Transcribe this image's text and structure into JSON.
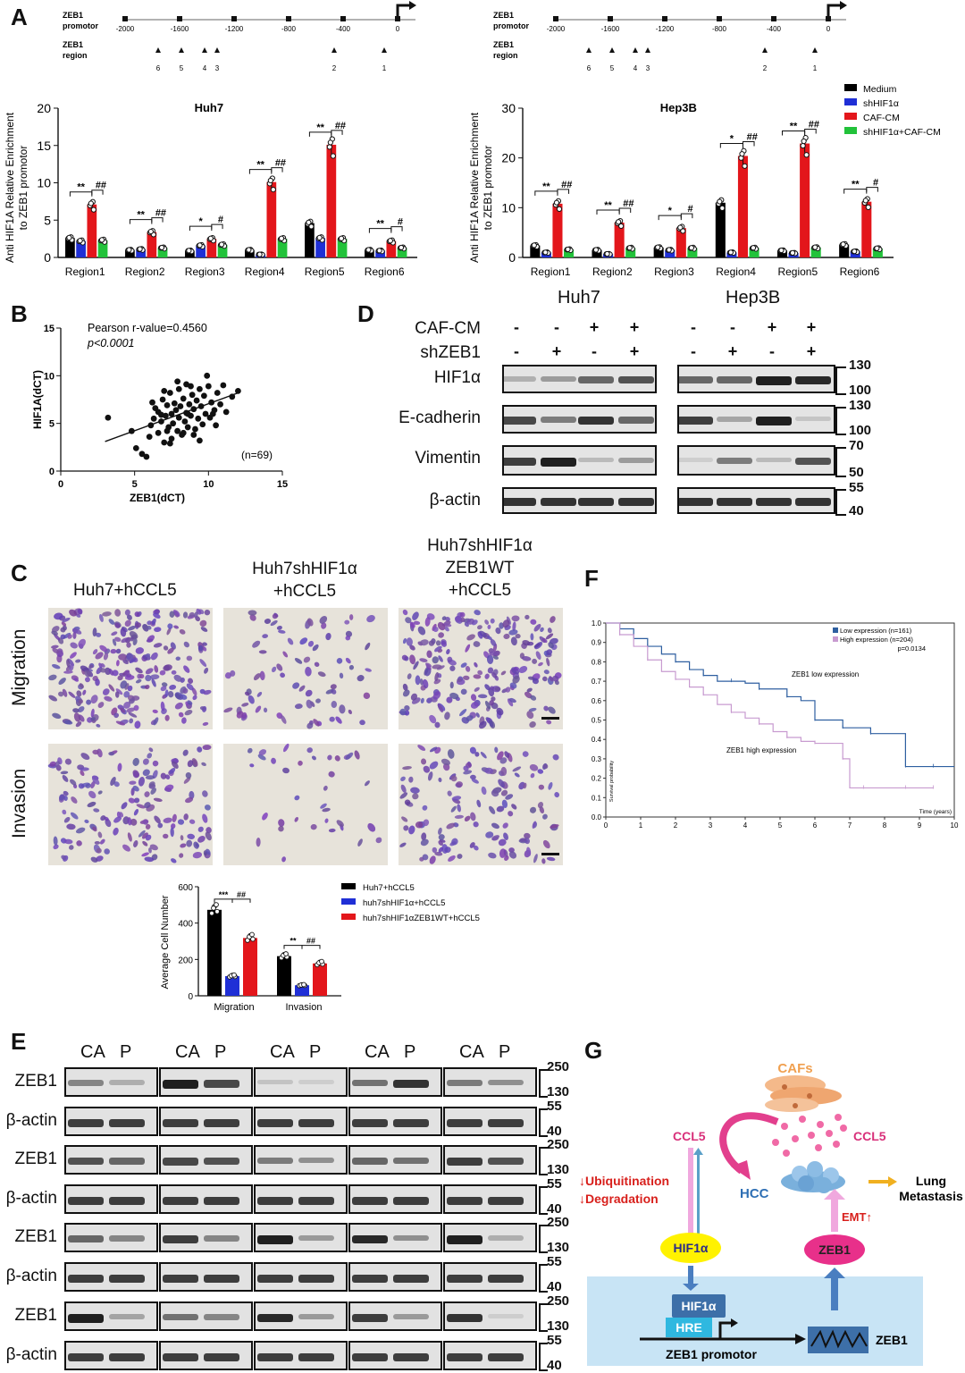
{
  "panels": {
    "A": "A",
    "B": "B",
    "C": "C",
    "D": "D",
    "E": "E",
    "F": "F",
    "G": "G"
  },
  "promoter": {
    "row_label_1a": "ZEB1",
    "row_label_1b": "promotor",
    "row_label_2a": "ZEB1",
    "row_label_2b": "region",
    "ticks": [
      "-2000",
      "-1600",
      "-1200",
      "-800",
      "-400",
      "0"
    ],
    "regions": [
      "6",
      "5",
      "4",
      "3",
      "2",
      "1"
    ]
  },
  "chipA": [
    {
      "title": "Huh7",
      "ylabel_1": "Anti HIF1A Relative Enrichment",
      "ylabel_2": "to ZEB1 promotor",
      "ymax": 20,
      "yticks": [
        "0",
        "5",
        "10",
        "15",
        "20"
      ],
      "categories": [
        "Region1",
        "Region2",
        "Region3",
        "Region4",
        "Region5",
        "Region6"
      ],
      "series": [
        {
          "name": "Medium",
          "color": "#000000",
          "values": [
            2.6,
            1.0,
            0.9,
            1.0,
            4.6,
            1.0
          ]
        },
        {
          "name": "shHIF1α",
          "color": "#1f2fd6",
          "values": [
            2.2,
            1.1,
            1.6,
            0.4,
            2.6,
            0.9
          ]
        },
        {
          "name": "CAF-CM",
          "color": "#e3161b",
          "values": [
            7.1,
            3.4,
            2.5,
            10.1,
            15.1,
            2.2
          ]
        },
        {
          "name": "shHIF1α+CAF-CM",
          "color": "#22c23a",
          "values": [
            2.3,
            1.3,
            1.7,
            2.5,
            2.5,
            1.3
          ]
        }
      ],
      "sig": [
        [
          "**",
          "##"
        ],
        [
          "**",
          "##"
        ],
        [
          "*",
          "#"
        ],
        [
          "**",
          "##"
        ],
        [
          "**",
          "##"
        ],
        [
          "**",
          "#"
        ]
      ]
    },
    {
      "title": "Hep3B",
      "ylabel_1": "Anti HIF1A Relative Enrichment",
      "ylabel_2": "to ZEB1 promotor",
      "ymax": 30,
      "yticks": [
        "0",
        "10",
        "20",
        "30"
      ],
      "categories": [
        "Region1",
        "Region2",
        "Region3",
        "Region4",
        "Region5",
        "Region6"
      ],
      "series": [
        {
          "name": "Medium",
          "color": "#000000",
          "values": [
            2.4,
            1.5,
            2.0,
            11.0,
            1.4,
            2.6
          ]
        },
        {
          "name": "shHIF1α",
          "color": "#1f2fd6",
          "values": [
            1.0,
            0.7,
            1.5,
            1.0,
            0.9,
            1.2
          ]
        },
        {
          "name": "CAF-CM",
          "color": "#e3161b",
          "values": [
            10.8,
            7.0,
            5.9,
            20.4,
            22.9,
            11.2
          ]
        },
        {
          "name": "shHIF1α+CAF-CM",
          "color": "#22c23a",
          "values": [
            1.6,
            1.9,
            1.9,
            1.9,
            2.0,
            1.8
          ]
        }
      ],
      "sig": [
        [
          "**",
          "##"
        ],
        [
          "**",
          "##"
        ],
        [
          "*",
          "#"
        ],
        [
          "*",
          "##"
        ],
        [
          "**",
          "##"
        ],
        [
          "**",
          "#"
        ]
      ]
    }
  ],
  "legendA": [
    "Medium",
    "shHIF1α",
    "CAF-CM",
    "shHIF1α+CAF-CM"
  ],
  "chart_data": [
    {
      "type": "bar",
      "title": "Huh7",
      "ylabel": "Anti HIF1A Relative Enrichment to ZEB1 promotor",
      "ylim": [
        0,
        20
      ],
      "categories": [
        "Region1",
        "Region2",
        "Region3",
        "Region4",
        "Region5",
        "Region6"
      ],
      "series": [
        {
          "name": "Medium",
          "values": [
            2.6,
            1.0,
            0.9,
            1.0,
            4.6,
            1.0
          ]
        },
        {
          "name": "shHIF1α",
          "values": [
            2.2,
            1.1,
            1.6,
            0.4,
            2.6,
            0.9
          ]
        },
        {
          "name": "CAF-CM",
          "values": [
            7.1,
            3.4,
            2.5,
            10.1,
            15.1,
            2.2
          ]
        },
        {
          "name": "shHIF1α+CAF-CM",
          "values": [
            2.3,
            1.3,
            1.7,
            2.5,
            2.5,
            1.3
          ]
        }
      ]
    },
    {
      "type": "bar",
      "title": "Hep3B",
      "ylabel": "Anti HIF1A Relative Enrichment to ZEB1 promotor",
      "ylim": [
        0,
        30
      ],
      "categories": [
        "Region1",
        "Region2",
        "Region3",
        "Region4",
        "Region5",
        "Region6"
      ],
      "series": [
        {
          "name": "Medium",
          "values": [
            2.4,
            1.5,
            2.0,
            11.0,
            1.4,
            2.6
          ]
        },
        {
          "name": "shHIF1α",
          "values": [
            1.0,
            0.7,
            1.5,
            1.0,
            0.9,
            1.2
          ]
        },
        {
          "name": "CAF-CM",
          "values": [
            10.8,
            7.0,
            5.9,
            20.4,
            22.9,
            11.2
          ]
        },
        {
          "name": "shHIF1α+CAF-CM",
          "values": [
            1.6,
            1.9,
            1.9,
            1.9,
            2.0,
            1.8
          ]
        }
      ]
    },
    {
      "type": "scatter",
      "xlabel": "ZEB1(dCT)",
      "ylabel": "HIF1A(dCT)",
      "xlim": [
        0,
        15
      ],
      "ylim": [
        0,
        15
      ],
      "annotation_1": "Pearson r-value=0.4560",
      "annotation_2": "p<0.0001",
      "n": "(n=69)",
      "points": [
        [
          3.2,
          5.6
        ],
        [
          4.8,
          4.2
        ],
        [
          5.1,
          2.4
        ],
        [
          5.5,
          1.8
        ],
        [
          5.8,
          1.5
        ],
        [
          6.0,
          3.6
        ],
        [
          6.1,
          4.8
        ],
        [
          6.3,
          5.5
        ],
        [
          6.4,
          6.6
        ],
        [
          6.6,
          4.0
        ],
        [
          6.6,
          6.2
        ],
        [
          6.8,
          5.2
        ],
        [
          6.9,
          7.5
        ],
        [
          7.0,
          3.0
        ],
        [
          7.1,
          5.8
        ],
        [
          7.2,
          6.9
        ],
        [
          7.3,
          4.6
        ],
        [
          7.4,
          8.2
        ],
        [
          7.5,
          6.0
        ],
        [
          7.5,
          3.4
        ],
        [
          7.6,
          5.0
        ],
        [
          7.7,
          7.1
        ],
        [
          7.8,
          6.4
        ],
        [
          7.9,
          4.2
        ],
        [
          8.0,
          8.6
        ],
        [
          8.0,
          5.6
        ],
        [
          8.1,
          6.8
        ],
        [
          8.2,
          3.8
        ],
        [
          8.3,
          7.6
        ],
        [
          8.4,
          5.2
        ],
        [
          8.5,
          6.1
        ],
        [
          8.5,
          9.1
        ],
        [
          8.6,
          4.6
        ],
        [
          8.7,
          7.0
        ],
        [
          8.8,
          5.8
        ],
        [
          8.9,
          8.0
        ],
        [
          9.0,
          6.5
        ],
        [
          9.1,
          4.4
        ],
        [
          9.2,
          7.4
        ],
        [
          9.3,
          5.5
        ],
        [
          9.4,
          8.6
        ],
        [
          9.5,
          6.8
        ],
        [
          9.6,
          4.9
        ],
        [
          9.7,
          7.9
        ],
        [
          9.8,
          6.0
        ],
        [
          10.0,
          8.9
        ],
        [
          10.1,
          5.6
        ],
        [
          10.2,
          7.2
        ],
        [
          10.4,
          6.4
        ],
        [
          10.6,
          8.2
        ],
        [
          10.8,
          7.0
        ],
        [
          11.0,
          9.0
        ],
        [
          11.2,
          6.2
        ],
        [
          11.6,
          7.8
        ],
        [
          12.0,
          8.4
        ],
        [
          9.9,
          10.0
        ],
        [
          7.0,
          8.4
        ],
        [
          8.3,
          4.0
        ],
        [
          6.8,
          5.9
        ],
        [
          9.4,
          3.2
        ],
        [
          10.5,
          4.8
        ],
        [
          7.9,
          9.4
        ],
        [
          6.2,
          7.2
        ],
        [
          8.8,
          8.9
        ],
        [
          9.0,
          3.8
        ],
        [
          7.4,
          2.9
        ],
        [
          10.3,
          6.0
        ],
        [
          8.6,
          6.0
        ],
        [
          7.2,
          4.2
        ]
      ],
      "fit": [
        [
          3,
          3.1
        ],
        [
          12,
          8.2
        ]
      ]
    },
    {
      "type": "bar",
      "ylabel": "Average Cell Number",
      "ylim": [
        0,
        600
      ],
      "categories": [
        "Migration",
        "Invasion"
      ],
      "series": [
        {
          "name": "Huh7+hCCL5",
          "values": [
            473,
            218
          ]
        },
        {
          "name": "huh7shHIF1α+hCCL5",
          "values": [
            108,
            58
          ]
        },
        {
          "name": "huh7shHIF1αZEB1WT+hCCL5",
          "values": [
            318,
            178
          ]
        }
      ],
      "sig": [
        [
          "***",
          "##"
        ],
        [
          "**",
          "##"
        ]
      ]
    },
    {
      "type": "line",
      "title": "",
      "xlabel": "Time (years)",
      "ylabel": "Survival probability",
      "xlim": [
        0,
        10
      ],
      "ylim": [
        0,
        1.0
      ],
      "legend": [
        "Low expression (n=161)",
        "High expression (n=204)",
        "p=0.0134"
      ],
      "annotation_low": "ZEB1 low expression",
      "annotation_high": "ZEB1 high expression",
      "series": [
        {
          "name": "Low expression (n=161)",
          "color": "#2e5fa0",
          "x": [
            0,
            0.4,
            0.8,
            1.2,
            1.6,
            2.0,
            2.4,
            2.8,
            3.2,
            3.6,
            4.0,
            4.4,
            4.8,
            5.2,
            5.6,
            6.0,
            6.4,
            6.8,
            7.2,
            7.6,
            8.0,
            8.6,
            9.0,
            9.4,
            10.0
          ],
          "y": [
            1.0,
            0.97,
            0.92,
            0.88,
            0.84,
            0.8,
            0.76,
            0.73,
            0.7,
            0.7,
            0.69,
            0.66,
            0.66,
            0.62,
            0.6,
            0.5,
            0.5,
            0.46,
            0.46,
            0.43,
            0.43,
            0.26,
            0.26,
            0.26,
            0.26
          ]
        },
        {
          "name": "High expression (n=204)",
          "color": "#c89bd0",
          "x": [
            0,
            0.4,
            0.8,
            1.2,
            1.6,
            2.0,
            2.4,
            2.8,
            3.2,
            3.6,
            4.0,
            4.4,
            4.8,
            5.2,
            5.6,
            6.0,
            6.4,
            6.8,
            7.0,
            7.4,
            8.0,
            8.6,
            9.0,
            9.4
          ],
          "y": [
            1.0,
            0.94,
            0.88,
            0.81,
            0.75,
            0.71,
            0.67,
            0.63,
            0.58,
            0.54,
            0.51,
            0.48,
            0.44,
            0.41,
            0.39,
            0.38,
            0.38,
            0.3,
            0.15,
            0.15,
            0.15,
            0.15,
            0.15,
            0.15
          ]
        }
      ]
    }
  ],
  "scatterB": {
    "annotation_1": "Pearson r-value=0.4560",
    "annotation_2": "p<0.0001",
    "n": "(n=69)",
    "xlabel": "ZEB1(dCT)",
    "ylabel": "HIF1A(dCT)",
    "xticks": [
      "0",
      "5",
      "10",
      "15"
    ],
    "yticks": [
      "0",
      "5",
      "10",
      "15"
    ]
  },
  "westernD": {
    "cell_1": "Huh7",
    "cell_2": "Hep3B",
    "cond_labels": [
      "CAF-CM",
      "shZEB1"
    ],
    "cond_marks": [
      [
        "-",
        "-",
        "+",
        "+"
      ],
      [
        "-",
        "+",
        "-",
        "+"
      ]
    ],
    "rows": [
      {
        "label": "HIF1α",
        "mw": [
          "130",
          "100"
        ]
      },
      {
        "label": "E-cadherin",
        "mw": [
          "130",
          "100"
        ]
      },
      {
        "label": "Vimentin",
        "mw": [
          "70",
          "50"
        ]
      },
      {
        "label": "β-actin",
        "mw": [
          "55",
          "40"
        ]
      }
    ]
  },
  "panelC": {
    "col_1": "Huh7+hCCL5",
    "col_2a": "Huh7shHIF1α",
    "col_2b": "+hCCL5",
    "col_3a": "Huh7shHIF1α",
    "col_3b": "ZEB1WT",
    "col_3c": "+hCCL5",
    "row_1": "Migration",
    "row_2": "Invasion",
    "bar_ylabel": "Average Cell Number",
    "bar_yticks": [
      "0",
      "200",
      "400",
      "600"
    ],
    "bar_cats": [
      "Migration",
      "Invasion"
    ],
    "legend": [
      "Huh7+hCCL5",
      "huh7shHIF1α+hCCL5",
      "huh7shHIF1αZEB1WT+hCCL5"
    ]
  },
  "survivalF": {
    "legend_1": "Low expression (n=161)",
    "legend_2": "High expression (n=204)",
    "pval": "p=0.0134",
    "ann_low": "ZEB1 low expression",
    "ann_high": "ZEB1 high expression",
    "ylabel": "Survival probability",
    "xlabel": "Time (years)",
    "xticks": [
      "0",
      "1",
      "2",
      "3",
      "4",
      "5",
      "6",
      "7",
      "8",
      "9",
      "10"
    ],
    "yticks": [
      "0.0",
      "0.1",
      "0.2",
      "0.3",
      "0.4",
      "0.5",
      "0.6",
      "0.7",
      "0.8",
      "0.9",
      "1.0"
    ]
  },
  "westernE": {
    "headers": [
      "CA",
      "P"
    ],
    "rows": [
      {
        "label": "ZEB1",
        "mw": [
          "250",
          "130"
        ]
      },
      {
        "label": "β-actin",
        "mw": [
          "55",
          "40"
        ]
      },
      {
        "label": "ZEB1",
        "mw": [
          "250",
          "130"
        ]
      },
      {
        "label": "β-actin",
        "mw": [
          "55",
          "40"
        ]
      },
      {
        "label": "ZEB1",
        "mw": [
          "250",
          "130"
        ]
      },
      {
        "label": "β-actin",
        "mw": [
          "55",
          "40"
        ]
      },
      {
        "label": "ZEB1",
        "mw": [
          "250",
          "130"
        ]
      },
      {
        "label": "β-actin",
        "mw": [
          "55",
          "40"
        ]
      }
    ]
  },
  "schematicG": {
    "cafs": "CAFs",
    "ccl5_left": "CCL5",
    "ccl5_right": "CCL5",
    "hcc": "HCC",
    "ubiq": "↓Ubiquitination",
    "degr": "↓Degradation",
    "hif": "HIF1α",
    "zeb1": "ZEB1",
    "emt": "EMT↑",
    "lung_1": "Lung",
    "lung_2": "Metastasis",
    "hif_box": "HIF1α",
    "hre": "HRE",
    "promotor": "ZEB1 promotor",
    "zeb1_gene": "ZEB1"
  }
}
